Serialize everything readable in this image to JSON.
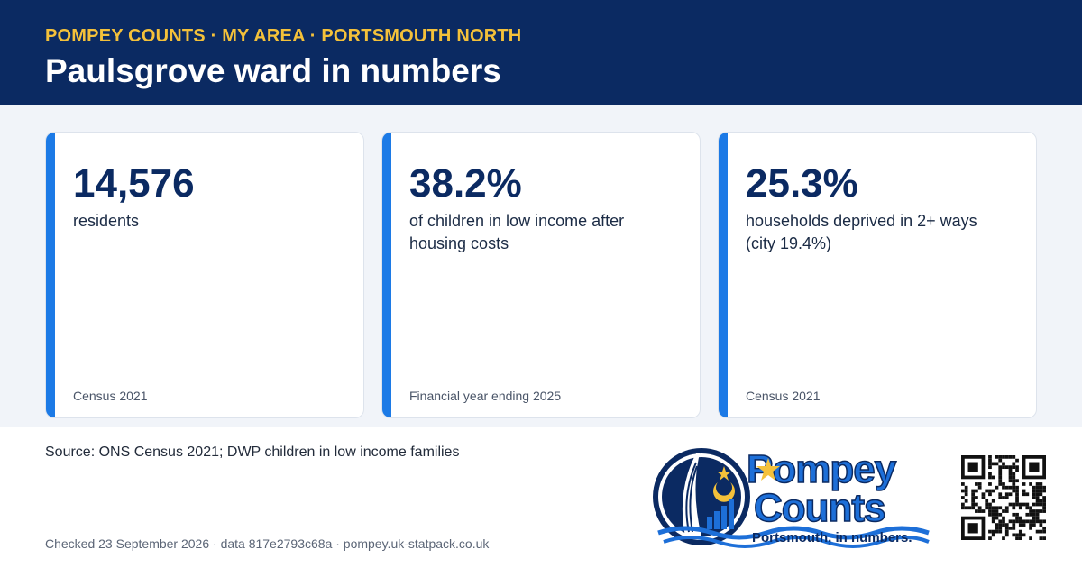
{
  "header": {
    "kicker": "POMPEY COUNTS · MY AREA · PORTSMOUTH NORTH",
    "title": "Paulsgrove ward in numbers"
  },
  "cards": [
    {
      "value": "14,576",
      "description": "residents",
      "note": "Census 2021"
    },
    {
      "value": "38.2%",
      "description": "of children in low income after housing costs",
      "note": "Financial year ending 2025"
    },
    {
      "value": "25.3%",
      "description": "households deprived in 2+ ways (city 19.4%)",
      "note": "Census 2021"
    }
  ],
  "footer": {
    "source": "Source: ONS Census 2021; DWP children in low income families",
    "checked": "Checked 23 September 2026 · data 817e2793c68a · pompey.uk-statpack.co.uk"
  },
  "logo": {
    "word1": "Pompey",
    "word2": "Counts",
    "tagline": "Portsmouth, in numbers."
  },
  "icons": {
    "logo": "spinnaker-tower-logo-icon",
    "qr": "qr-code-icon"
  },
  "colors": {
    "navy": "#0b2a62",
    "gold": "#f4c13a",
    "accent": "#1c7ae6",
    "band": "#f1f4f9"
  }
}
